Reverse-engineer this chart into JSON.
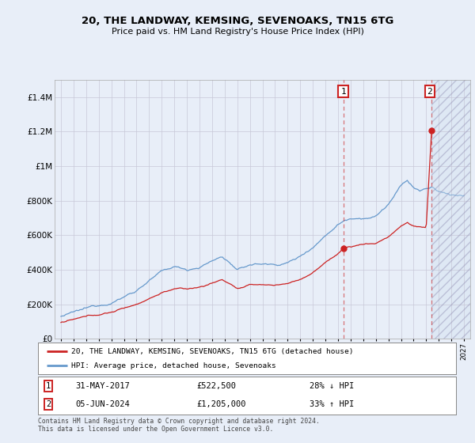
{
  "title": "20, THE LANDWAY, KEMSING, SEVENOAKS, TN15 6TG",
  "subtitle": "Price paid vs. HM Land Registry's House Price Index (HPI)",
  "legend_label_red": "20, THE LANDWAY, KEMSING, SEVENOAKS, TN15 6TG (detached house)",
  "legend_label_blue": "HPI: Average price, detached house, Sevenoaks",
  "annotation1_label": "1",
  "annotation1_date": "31-MAY-2017",
  "annotation1_price": "£522,500",
  "annotation1_hpi": "28% ↓ HPI",
  "annotation2_label": "2",
  "annotation2_date": "05-JUN-2024",
  "annotation2_price": "£1,205,000",
  "annotation2_hpi": "33% ↑ HPI",
  "footer": "Contains HM Land Registry data © Crown copyright and database right 2024.\nThis data is licensed under the Open Government Licence v3.0.",
  "ylim": [
    0,
    1500000
  ],
  "yticks": [
    0,
    200000,
    400000,
    600000,
    800000,
    1000000,
    1200000,
    1400000
  ],
  "ytick_labels": [
    "£0",
    "£200K",
    "£400K",
    "£600K",
    "£800K",
    "£1M",
    "£1.2M",
    "£1.4M"
  ],
  "bg_color": "#e8eef8",
  "red_color": "#cc2222",
  "blue_color": "#6699cc",
  "transaction1_x": 2017.42,
  "transaction1_y": 522500,
  "transaction2_x": 2024.43,
  "transaction2_y": 1205000,
  "future_start_x": 2024.43,
  "xmin": 1994.5,
  "xmax": 2027.5
}
